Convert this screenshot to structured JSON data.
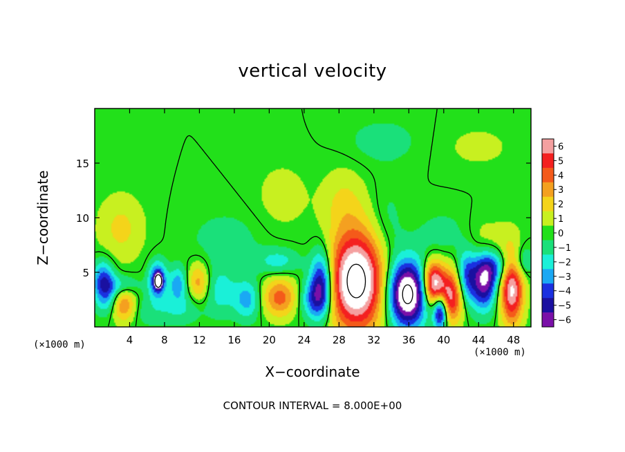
{
  "chart_data": {
    "type": "heatmap",
    "title": "vertical velocity",
    "xlabel": "X−coordinate",
    "ylabel": "Z−coordinate",
    "x_unit_label": "(×1000 m)",
    "footer": "CONTOUR INTERVAL = 8.000E+00",
    "xlim": [
      0,
      50
    ],
    "ylim": [
      0,
      20
    ],
    "x_ticks": [
      4,
      8,
      12,
      16,
      20,
      24,
      28,
      32,
      36,
      40,
      44,
      48
    ],
    "y_ticks": [
      5,
      10,
      15
    ],
    "colorbar": {
      "ticks": [
        "6",
        "5",
        "4",
        "3",
        "2",
        "1",
        "0",
        "−1",
        "−2",
        "−3",
        "−4",
        "−5",
        "−6"
      ],
      "range": [
        -6,
        6
      ],
      "colors": [
        "#f4a0a0",
        "#f42020",
        "#f45a1a",
        "#f4a020",
        "#f4d41a",
        "#c8f020",
        "#22e01a",
        "#1ae07a",
        "#1af0d8",
        "#1aa8f4",
        "#1a30e0",
        "#1a10a0",
        "#7a10a8"
      ]
    },
    "features": [
      {
        "x": 30,
        "z": 4.2,
        "value": 9,
        "rx": 3.2,
        "rz": 4.5
      },
      {
        "x": 35.8,
        "z": 3.0,
        "value": -9,
        "rx": 2.2,
        "rz": 3.0
      },
      {
        "x": 38.8,
        "z": 4.0,
        "value": 7,
        "rx": 1.2,
        "rz": 2.0
      },
      {
        "x": 40.8,
        "z": 2.8,
        "value": 6,
        "rx": 1.5,
        "rz": 2.4
      },
      {
        "x": 39.6,
        "z": 1.4,
        "value": -7,
        "rx": 0.8,
        "rz": 1.6
      },
      {
        "x": 47.8,
        "z": 3.6,
        "value": 7,
        "rx": 1.3,
        "rz": 3.3
      },
      {
        "x": 44.6,
        "z": 4.0,
        "value": -6,
        "rx": 1.4,
        "rz": 2.4
      },
      {
        "x": 46.0,
        "z": 5.5,
        "value": -3,
        "rx": 2.0,
        "rz": 1.5
      },
      {
        "x": 42.6,
        "z": 4.5,
        "value": -4,
        "rx": 1.1,
        "rz": 2.5
      },
      {
        "x": 26.0,
        "z": 4.0,
        "value": -6,
        "rx": 1.3,
        "rz": 3.0
      },
      {
        "x": 25.0,
        "z": 2.5,
        "value": -3,
        "rx": 1.6,
        "rz": 1.8
      },
      {
        "x": 21.2,
        "z": 2.7,
        "value": 4,
        "rx": 2.0,
        "rz": 1.8
      },
      {
        "x": 17.5,
        "z": 2.5,
        "value": -3,
        "rx": 1.5,
        "rz": 1.8
      },
      {
        "x": 3.3,
        "z": 2.0,
        "value": 4,
        "rx": 1.4,
        "rz": 1.6
      },
      {
        "x": 3.0,
        "z": 3.8,
        "value": -2,
        "rx": 2.0,
        "rz": 1.0
      },
      {
        "x": 1.0,
        "z": 4.3,
        "value": -4,
        "rx": 1.2,
        "rz": 1.8
      },
      {
        "x": 1.5,
        "z": 2.5,
        "value": -2,
        "rx": 1.4,
        "rz": 1.5
      },
      {
        "x": 3.0,
        "z": 9.0,
        "value": 1.8,
        "rx": 2.6,
        "rz": 3.0
      },
      {
        "x": 7.2,
        "z": 4.3,
        "value": -5,
        "rx": 1.0,
        "rz": 1.6
      },
      {
        "x": 7.3,
        "z": 4.2,
        "value": -9,
        "rx": 0.4,
        "rz": 0.6
      },
      {
        "x": 9.5,
        "z": 4.0,
        "value": -3,
        "rx": 1.0,
        "rz": 1.5
      },
      {
        "x": 11.9,
        "z": 4.0,
        "value": 3,
        "rx": 1.2,
        "rz": 1.8
      },
      {
        "x": 14.5,
        "z": 3.3,
        "value": -2,
        "rx": 1.8,
        "rz": 2.2
      },
      {
        "x": 10.0,
        "z": 1.8,
        "value": -1.5,
        "rx": 2.5,
        "rz": 1.5
      },
      {
        "x": 6.0,
        "z": 1.5,
        "value": -1,
        "rx": 3.0,
        "rz": 1.5
      },
      {
        "x": 15.0,
        "z": 8.0,
        "value": -1,
        "rx": 4.0,
        "rz": 2.5
      },
      {
        "x": 21.5,
        "z": 12.0,
        "value": 1,
        "rx": 3.0,
        "rz": 3.0
      },
      {
        "x": 28.5,
        "z": 11.5,
        "value": 1.5,
        "rx": 2.5,
        "rz": 3.0
      },
      {
        "x": 33.5,
        "z": 9.0,
        "value": -1,
        "rx": 2.0,
        "rz": 4.0
      },
      {
        "x": 40.0,
        "z": 8.5,
        "value": -1,
        "rx": 3.0,
        "rz": 2.0
      },
      {
        "x": 45.0,
        "z": 8.0,
        "value": 1,
        "rx": 3.0,
        "rz": 2.0
      },
      {
        "x": 49.0,
        "z": 6.0,
        "value": -2,
        "rx": 1.2,
        "rz": 1.5
      },
      {
        "x": 33.0,
        "z": 17.0,
        "value": -1,
        "rx": 4.0,
        "rz": 2.0
      },
      {
        "x": 44.0,
        "z": 16.5,
        "value": 0.8,
        "rx": 4.0,
        "rz": 2.0
      },
      {
        "x": 21.0,
        "z": 6.0,
        "value": -2,
        "rx": 2.5,
        "rz": 1.2
      }
    ]
  }
}
